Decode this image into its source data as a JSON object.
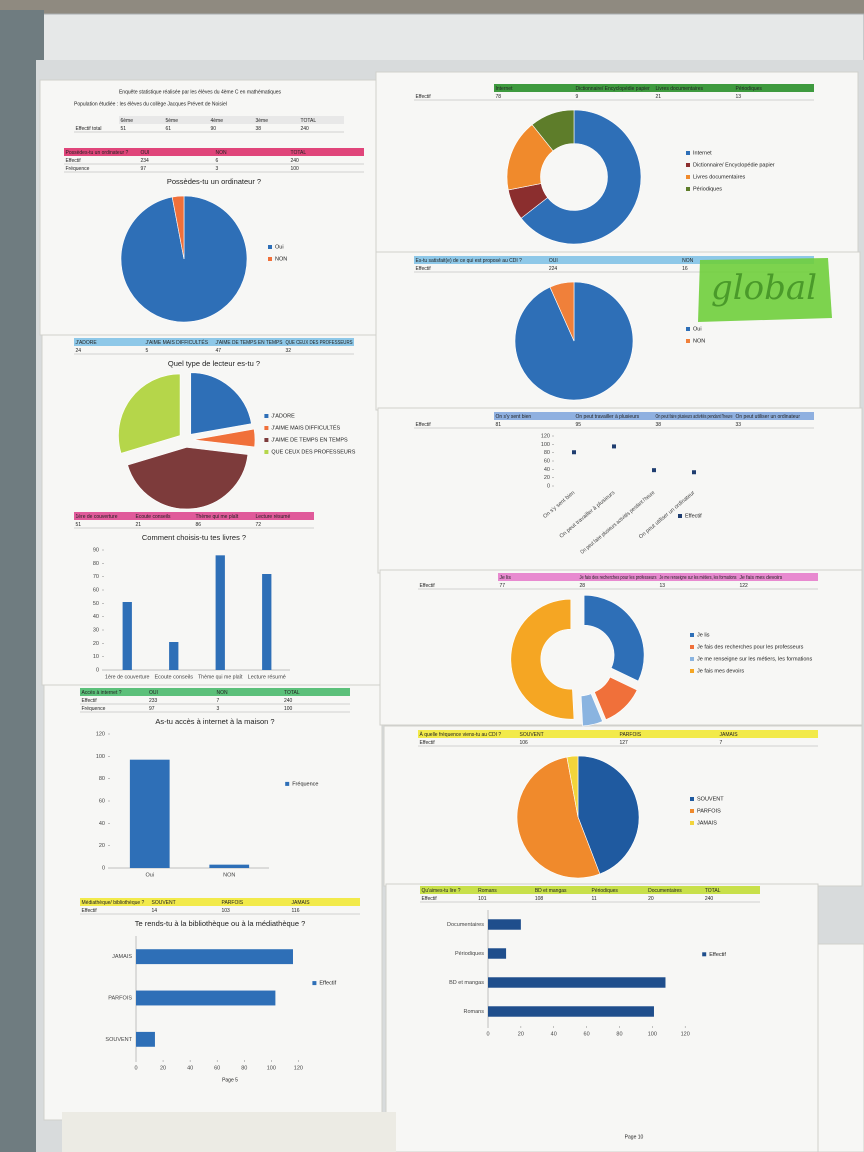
{
  "survey_header": {
    "title": "Enquête statistique réalisée par les élèves du 4ème C en mathématiques",
    "subtitle": "Population étudiée : les élèves du collège Jacques Prévert de Noisiel",
    "table": {
      "header": [
        "6ème",
        "5ème",
        "4ème",
        "3ème",
        "TOTAL"
      ],
      "rows": [
        [
          "Effectif total",
          51,
          61,
          90,
          38,
          240
        ]
      ]
    }
  },
  "chart_data": [
    {
      "type": "pie",
      "title": "Possèdes-tu un ordinateur ?",
      "table": {
        "color": "#e0457a",
        "header": [
          "Possèdes-tu un ordinateur ?",
          "OUI",
          "NON",
          "TOTAL"
        ],
        "rows": [
          [
            "Effectif",
            234,
            6,
            240
          ],
          [
            "Fréquence",
            97,
            3,
            100
          ]
        ]
      },
      "categories": [
        "Oui",
        "NON"
      ],
      "values": [
        97,
        3
      ],
      "colors": [
        "#2e6fb7",
        "#f0703a"
      ]
    },
    {
      "type": "pie",
      "explode": true,
      "title": "Quel type de lecteur es-tu ?",
      "table": {
        "color": "#8ec8e8",
        "header": [
          "J'ADORE",
          "J'AIME MAIS DIFFICULTÉS",
          "J'AIME DE TEMPS EN TEMPS",
          "QUE CEUX DES PROFESSEURS"
        ],
        "rows": [
          [
            24,
            5,
            47,
            32
          ]
        ]
      },
      "categories": [
        "J'ADORE",
        "J'AIME MAIS DIFFICULTÉS",
        "J'AIME DE TEMPS EN TEMPS",
        "QUE CEUX DES PROFESSEURS"
      ],
      "values": [
        24,
        5,
        47,
        32
      ],
      "colors": [
        "#2e6fb7",
        "#f0703a",
        "#7d3b3b",
        "#b5d64a"
      ]
    },
    {
      "type": "bar",
      "title": "Comment choisis-tu tes livres ?",
      "table": {
        "color": "#e05a9a",
        "header": [
          "1ère de couverture",
          "Ecoute conseils",
          "Thème qui me plaît",
          "Lecture résumé"
        ],
        "rows": [
          [
            51,
            21,
            86,
            72
          ]
        ]
      },
      "categories": [
        "1ère de couverture",
        "Ecoute conseils",
        "Thème qui me plaît",
        "Lecture résumé"
      ],
      "values": [
        51,
        21,
        86,
        72
      ],
      "color": "#2e6fb7",
      "ylim": [
        0,
        90
      ],
      "yticks": [
        0,
        10,
        20,
        30,
        40,
        50,
        60,
        70,
        80,
        90
      ]
    },
    {
      "type": "bar",
      "title": "As-tu accès à internet à la maison ?",
      "table": {
        "color": "#5cc07a",
        "header": [
          "Accès à internet ?",
          "OUI",
          "NON",
          "TOTAL"
        ],
        "rows": [
          [
            "Effectif",
            233,
            7,
            240
          ],
          [
            "Fréquence",
            97,
            3,
            100
          ]
        ]
      },
      "categories": [
        "Oui",
        "NON"
      ],
      "series": [
        {
          "name": "Fréquence",
          "color": "#2e6fb7",
          "values": [
            97,
            3
          ]
        }
      ],
      "ylim": [
        0,
        120
      ],
      "yticks": [
        0,
        20,
        40,
        60,
        80,
        100,
        120
      ]
    },
    {
      "type": "hbar",
      "title": "Te rends-tu à la bibliothèque ou à la médiathèque ?",
      "table": {
        "color": "#f2ea4a",
        "header": [
          "Médiathèque/ bibliothèque ?",
          "SOUVENT",
          "PARFOIS",
          "JAMAIS"
        ],
        "rows": [
          [
            "Effectif",
            14,
            103,
            116
          ]
        ]
      },
      "categories": [
        "JAMAIS",
        "PARFOIS",
        "SOUVENT"
      ],
      "series": [
        {
          "name": "Effectif",
          "color": "#2e6fb7",
          "values": [
            116,
            103,
            14
          ]
        }
      ],
      "xlim": [
        0,
        120
      ],
      "xticks": [
        0,
        20,
        40,
        60,
        80,
        100,
        120
      ]
    },
    {
      "type": "donut",
      "table": {
        "color": "#3e9a3e",
        "header": [
          "Internet",
          "Dictionnaire/ Encyclopédie papier",
          "Livres documentaires",
          "Périodiques"
        ],
        "rows": [
          [
            "Effectif",
            78,
            9,
            21,
            13
          ]
        ]
      },
      "categories": [
        "Internet",
        "Dictionnaire/ Encyclopédie papier",
        "Livres documentaires",
        "Périodiques"
      ],
      "values": [
        78,
        9,
        21,
        13
      ],
      "colors": [
        "#2e6fb7",
        "#8b2e2e",
        "#f08a2c",
        "#5e7d2a"
      ]
    },
    {
      "type": "pie",
      "table": {
        "color": "#8ec8e8",
        "header": [
          "Es-tu satisfait(e) de ce qui est proposé au CDI ?",
          "OUI",
          "NON"
        ],
        "rows": [
          [
            "Effectif",
            224,
            16
          ]
        ]
      },
      "categories": [
        "Oui",
        "NON"
      ],
      "values": [
        224,
        16
      ],
      "colors": [
        "#2e6fb7",
        "#f0803a"
      ]
    },
    {
      "type": "scatter",
      "table": {
        "color": "#8fb0e0",
        "header": [
          "On s'y sent bien",
          "On peut travailler à plusieurs",
          "On peut faire plusieurs activités pendant l'heure",
          "On peut utiliser un ordinateur"
        ],
        "rows": [
          [
            "Effectif",
            81,
            95,
            38,
            33
          ]
        ]
      },
      "categories": [
        "On s'y sent bien",
        "On peut travailler à plusieurs",
        "On peut faire plusieurs activités pendant l'heure",
        "On peut utiliser un ordinateur"
      ],
      "series": [
        {
          "name": "Effectif",
          "color": "#1f3d70",
          "values": [
            81,
            95,
            38,
            33
          ]
        }
      ],
      "ylim": [
        0,
        120
      ],
      "yticks": [
        0,
        20,
        40,
        60,
        80,
        100,
        120
      ]
    },
    {
      "type": "donut",
      "explode": true,
      "table": {
        "color": "#e88ad0",
        "header": [
          "Je lis",
          "Je fais des recherches pour les professeurs",
          "Je me renseigne sur les métiers, les formations",
          "Je fais mes devoirs"
        ],
        "rows": [
          [
            "Effectif",
            77,
            28,
            13,
            122
          ]
        ]
      },
      "categories": [
        "Je lis",
        "Je fais des recherches pour les professeurs",
        "Je me renseigne sur les métiers, les formations",
        "Je fais mes devoirs"
      ],
      "values": [
        77,
        28,
        13,
        122
      ],
      "colors": [
        "#2e6fb7",
        "#f0703a",
        "#8ab4e0",
        "#f5a623"
      ]
    },
    {
      "type": "pie",
      "table": {
        "color": "#f2ea4a",
        "header": [
          "À quelle fréquence viens-tu au CDI ?",
          "SOUVENT",
          "PARFOIS",
          "JAMAIS"
        ],
        "rows": [
          [
            "Effectif",
            106,
            127,
            7
          ]
        ]
      },
      "categories": [
        "SOUVENT",
        "PARFOIS",
        "JAMAIS"
      ],
      "values": [
        106,
        127,
        7
      ],
      "colors": [
        "#1f5aa0",
        "#f08a2c",
        "#f2d43a"
      ]
    },
    {
      "type": "hbar",
      "table": {
        "color": "#c8e04a",
        "header": [
          "Qu'aimes-tu lire ?",
          "Romans",
          "BD et mangas",
          "Périodiques",
          "Documentaires",
          "TOTAL"
        ],
        "rows": [
          [
            "Effectif",
            101,
            108,
            11,
            20,
            240
          ]
        ]
      },
      "categories": [
        "Documentaires",
        "Périodiques",
        "BD et mangas",
        "Romans"
      ],
      "series": [
        {
          "name": "Effectif",
          "color": "#1f4e8c",
          "values": [
            20,
            11,
            108,
            101
          ]
        }
      ],
      "xlim": [
        0,
        120
      ],
      "xticks": [
        0,
        20,
        40,
        60,
        80,
        100,
        120
      ]
    }
  ],
  "annotation": "global",
  "pages": [
    "Page 5",
    "Page 10"
  ]
}
